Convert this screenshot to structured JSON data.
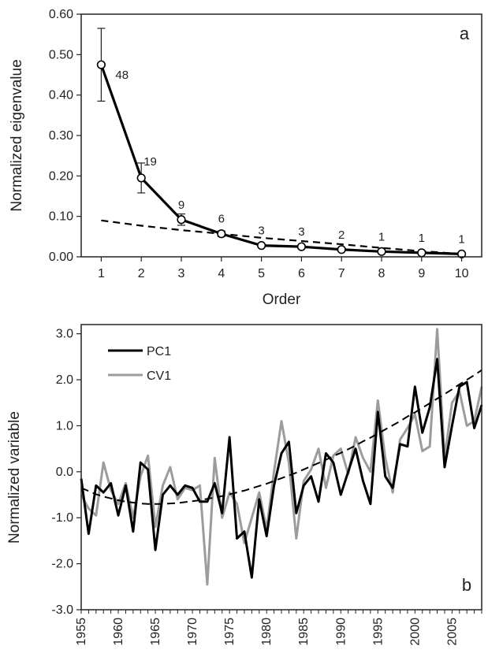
{
  "chart_data": [
    {
      "type": "line",
      "panel_label": "a",
      "xlabel": "Order",
      "ylabel": "Normalized eigenvalue",
      "xlim": [
        0.5,
        10.5
      ],
      "ylim": [
        0,
        0.6
      ],
      "x_ticks": [
        "1",
        "2",
        "3",
        "4",
        "5",
        "6",
        "7",
        "8",
        "9",
        "10"
      ],
      "y_ticks": [
        "0.00",
        "0.10",
        "0.20",
        "0.30",
        "0.40",
        "0.50",
        "0.60"
      ],
      "series": [
        {
          "style": "solid-markers",
          "x": [
            1,
            2,
            3,
            4,
            5,
            6,
            7,
            8,
            9,
            10
          ],
          "values": [
            0.475,
            0.195,
            0.092,
            0.057,
            0.028,
            0.025,
            0.018,
            0.013,
            0.01,
            0.007
          ],
          "error": [
            0.09,
            0.037,
            0.014,
            0.007,
            0.003,
            0.003,
            0.002,
            0.002,
            0.001,
            0.001
          ]
        },
        {
          "style": "dashed",
          "x": [
            1,
            2,
            3,
            4,
            5,
            6,
            7,
            8,
            9,
            10
          ],
          "values": [
            0.09,
            0.077,
            0.066,
            0.057,
            0.047,
            0.039,
            0.031,
            0.022,
            0.014,
            0.007
          ]
        }
      ],
      "annotations": [
        "48",
        "19",
        "9",
        "6",
        "3",
        "3",
        "2",
        "1",
        "1",
        "1"
      ],
      "grid": false
    },
    {
      "type": "line",
      "panel_label": "b",
      "xlabel": "",
      "ylabel": "Normalized variable",
      "xlim": [
        1955,
        2009
      ],
      "ylim": [
        -3,
        3.2
      ],
      "x_ticks": [
        "1955",
        "1960",
        "1965",
        "1970",
        "1975",
        "1980",
        "1985",
        "1990",
        "1995",
        "2000",
        "2005"
      ],
      "y_ticks": [
        "3.0",
        "2.0",
        "1.0",
        "0.0",
        "-1.0",
        "-2.0",
        "-3.0"
      ],
      "x": [
        1955,
        1956,
        1957,
        1958,
        1959,
        1960,
        1961,
        1962,
        1963,
        1964,
        1965,
        1966,
        1967,
        1968,
        1969,
        1970,
        1971,
        1972,
        1973,
        1974,
        1975,
        1976,
        1977,
        1978,
        1979,
        1980,
        1981,
        1982,
        1983,
        1984,
        1985,
        1986,
        1987,
        1988,
        1989,
        1990,
        1991,
        1992,
        1993,
        1994,
        1995,
        1996,
        1997,
        1998,
        1999,
        2000,
        2001,
        2002,
        2003,
        2004,
        2005,
        2006,
        2007,
        2008,
        2009
      ],
      "series": [
        {
          "name": "PC1",
          "color": "#000000",
          "values": [
            -0.15,
            -1.35,
            -0.3,
            -0.45,
            -0.25,
            -0.95,
            -0.3,
            -1.3,
            0.2,
            0.05,
            -1.7,
            -0.5,
            -0.3,
            -0.5,
            -0.3,
            -0.35,
            -0.65,
            -0.65,
            -0.25,
            -0.9,
            0.75,
            -1.45,
            -1.3,
            -2.3,
            -0.6,
            -1.4,
            -0.3,
            0.4,
            0.65,
            -0.9,
            -0.3,
            -0.1,
            -0.65,
            0.4,
            0.2,
            -0.5,
            0.0,
            0.5,
            -0.2,
            -0.7,
            1.3,
            -0.1,
            -0.35,
            0.6,
            0.55,
            1.85,
            0.85,
            1.4,
            2.45,
            0.1,
            1.0,
            1.85,
            1.95,
            0.95,
            1.45
          ]
        },
        {
          "name": "CV1",
          "color": "#9c9c9c",
          "values": [
            -0.5,
            -0.8,
            -0.95,
            0.2,
            -0.4,
            -0.7,
            -0.25,
            -1.0,
            -0.1,
            0.35,
            -1.2,
            -0.3,
            0.1,
            -0.6,
            -0.35,
            -0.4,
            -0.3,
            -2.45,
            0.3,
            -1.0,
            -0.45,
            -0.7,
            -1.55,
            -1.0,
            -0.45,
            -1.25,
            0.0,
            1.1,
            0.2,
            -1.45,
            -0.2,
            0.05,
            0.5,
            -0.35,
            0.35,
            0.5,
            -0.05,
            0.75,
            0.3,
            0.0,
            1.55,
            0.3,
            -0.45,
            0.7,
            0.95,
            1.25,
            0.45,
            0.55,
            3.1,
            0.3,
            1.5,
            1.75,
            1.0,
            1.1,
            1.85
          ]
        },
        {
          "style": "dashed",
          "color": "#000000",
          "values": [
            -0.35,
            -0.42,
            -0.49,
            -0.54,
            -0.58,
            -0.62,
            -0.65,
            -0.67,
            -0.69,
            -0.7,
            -0.7,
            -0.7,
            -0.69,
            -0.68,
            -0.66,
            -0.64,
            -0.62,
            -0.59,
            -0.56,
            -0.53,
            -0.49,
            -0.45,
            -0.41,
            -0.36,
            -0.31,
            -0.26,
            -0.2,
            -0.14,
            -0.08,
            -0.02,
            0.05,
            0.12,
            0.19,
            0.26,
            0.34,
            0.41,
            0.49,
            0.57,
            0.66,
            0.74,
            0.83,
            0.92,
            1.01,
            1.1,
            1.2,
            1.29,
            1.39,
            1.49,
            1.59,
            1.69,
            1.79,
            1.9,
            2.0,
            2.1,
            2.21
          ]
        }
      ],
      "legend": "top-left",
      "grid": false
    }
  ]
}
